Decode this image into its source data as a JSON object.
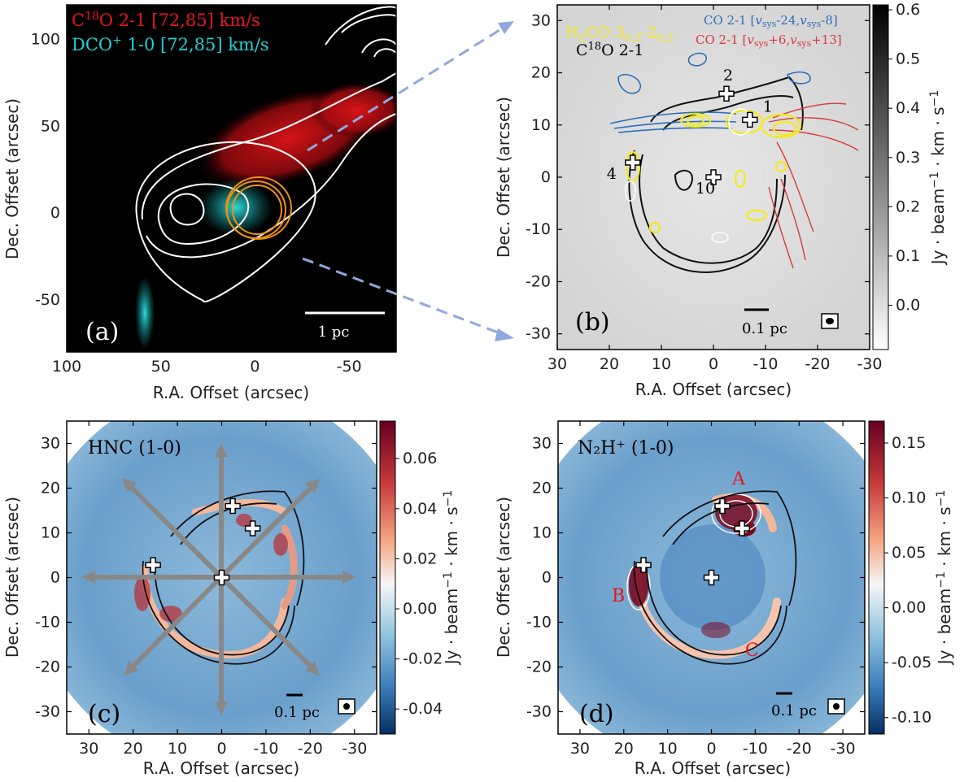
{
  "colors": {
    "red": "#e8141b",
    "cyan": "#1fd3d3",
    "yellow": "#f2ea1a",
    "blue_line": "#2e6fb6",
    "red_line": "#d83a3a",
    "arrow": "#8fa8dd"
  },
  "chart_data": [
    {
      "type": "heatmap",
      "panel": "(a)",
      "xlabel": "R.A. Offset (arcsec)",
      "ylabel": "Dec. Offset (arcsec)",
      "xlim": [
        100,
        -75
      ],
      "ylim": [
        -80,
        120
      ],
      "xticks": [
        "100",
        "50",
        "0",
        "-50"
      ],
      "yticks": [
        "100",
        "50",
        "0",
        "-50"
      ],
      "legend": [
        {
          "label": "C¹⁸O 2-1 [72,85] km/s",
          "color": "red"
        },
        {
          "label": "DCO⁺ 1-0 [72,85] km/s",
          "color": "cyan"
        }
      ],
      "scalebar": "1 pc"
    },
    {
      "type": "heatmap",
      "panel": "(b)",
      "xlabel": "R.A. Offset (arcsec)",
      "ylabel": "Dec. Offset (arcsec)",
      "xlim": [
        30,
        -30
      ],
      "ylim": [
        -33,
        33
      ],
      "xticks": [
        "30",
        "20",
        "10",
        "0",
        "-10",
        "-20",
        "-30"
      ],
      "yticks": [
        "30",
        "20",
        "10",
        "0",
        "-10",
        "-20",
        "-30"
      ],
      "colorbar_label": "Jy · beam⁻¹ · km · s⁻¹",
      "colorbar_ticks": [
        "0.6",
        "0.5",
        "0.4",
        "0.3",
        "0.2",
        "0.1",
        "0.0"
      ],
      "legend": [
        {
          "label": "H₂CO 3₀,₃-2₀,₂",
          "color": "yellow"
        },
        {
          "label": "C¹⁸O 2-1",
          "color": "black"
        },
        {
          "label": "CO 2-1 [vsys-24,vsys-8]",
          "color": "blue"
        },
        {
          "label": "CO 2-1 [vsys+6,vsys+13]",
          "color": "red"
        }
      ],
      "sources": [
        {
          "name": "1",
          "x": -7,
          "y": 11
        },
        {
          "name": "2",
          "x": -2.5,
          "y": 16
        },
        {
          "name": "4",
          "x": 15.5,
          "y": 2.8
        },
        {
          "name": "10",
          "x": 0,
          "y": 0
        }
      ],
      "scalebar": "0.1 pc"
    },
    {
      "type": "heatmap",
      "panel": "(c)",
      "title": "HNC (1-0)",
      "xlabel": "R.A. Offset (arcsec)",
      "ylabel": "Dec. Offset (arcsec)",
      "xlim": [
        35,
        -35
      ],
      "ylim": [
        -35,
        35
      ],
      "xticks": [
        "30",
        "20",
        "10",
        "0",
        "-10",
        "-20",
        "-30"
      ],
      "yticks": [
        "30",
        "20",
        "10",
        "0",
        "-10",
        "-20",
        "-30"
      ],
      "colorbar_label": "Jy · beam⁻¹ · km · s⁻¹",
      "colorbar_ticks": [
        "0.06",
        "0.04",
        "0.02",
        "0.00",
        "-0.02",
        "-0.04"
      ],
      "scalebar": "0.1 pc"
    },
    {
      "type": "heatmap",
      "panel": "(d)",
      "title": "N₂H⁺ (1-0)",
      "xlabel": "R.A. Offset (arcsec)",
      "ylabel": "Dec. Offset (arcsec)",
      "xlim": [
        35,
        -35
      ],
      "ylim": [
        -35,
        35
      ],
      "xticks": [
        "30",
        "20",
        "10",
        "0",
        "-10",
        "-20",
        "-30"
      ],
      "yticks": [
        "30",
        "20",
        "10",
        "0",
        "-10",
        "-20",
        "-30"
      ],
      "colorbar_label": "Jy · beam⁻¹ · km · s⁻¹",
      "colorbar_ticks": [
        "0.15",
        "0.10",
        "0.05",
        "0.00",
        "-0.05",
        "-0.10"
      ],
      "annotations": [
        "A",
        "B",
        "C"
      ],
      "scalebar": "0.1 pc"
    }
  ]
}
